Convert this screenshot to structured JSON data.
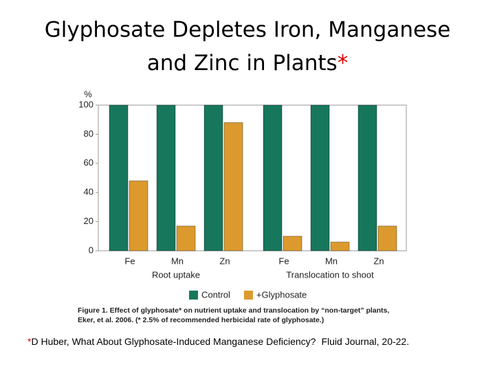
{
  "title_lines": [
    "Glyphosate Depletes Iron, Manganese",
    "and Zinc in Plants"
  ],
  "title_mark": "*",
  "chart_data": {
    "type": "bar",
    "y_label": "%",
    "categories": [
      "Fe",
      "Mn",
      "Zn",
      "Fe",
      "Mn",
      "Zn"
    ],
    "group_labels": [
      "Root uptake",
      "Translocation to shoot"
    ],
    "series": [
      {
        "name": "Control",
        "color": "#17775c",
        "values": [
          100,
          100,
          100,
          100,
          100,
          100
        ]
      },
      {
        "name": "+Glyphosate",
        "color": "#dc9a2e",
        "values": [
          48,
          17,
          88,
          10,
          6,
          17
        ]
      }
    ],
    "ylim": [
      0,
      100
    ],
    "yticks": [
      0,
      20,
      40,
      60,
      80,
      100
    ],
    "grid": false,
    "legend": "bottom",
    "caption_lines": [
      "Figure 1. Effect of glyphosate* on nutrient uptake and translocation by “non-target” plants,",
      "Eker, et al. 2006. (* 2.5% of recommended herbicidal rate of glyphosate.)"
    ]
  },
  "footnote": {
    "mark": "*",
    "text": "D Huber, What About Glyphosate-Induced Manganese Deficiency?",
    "source": "Fluid Journal, 20-22."
  }
}
